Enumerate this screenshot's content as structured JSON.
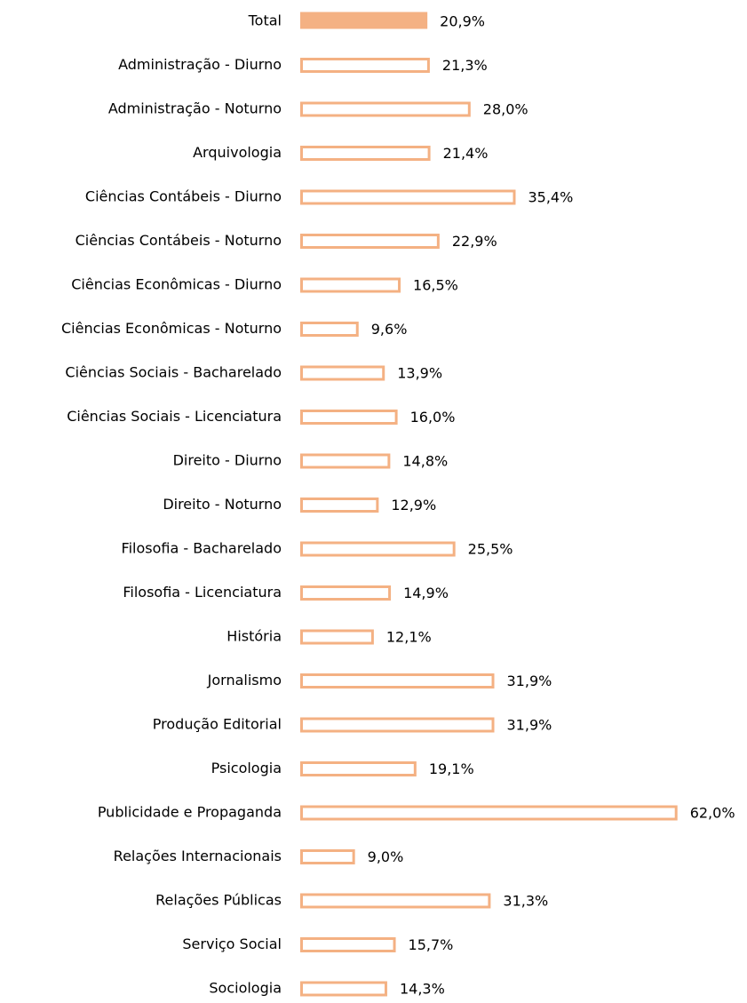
{
  "chart_data": {
    "type": "bar",
    "orientation": "horizontal",
    "color": "#f4b183",
    "categories": [
      "Total",
      "Administração - Diurno",
      "Administração - Noturno",
      "Arquivologia",
      "Ciências Contábeis - Diurno",
      "Ciências Contábeis - Noturno",
      "Ciências Econômicas - Diurno",
      "Ciências Econômicas - Noturno",
      "Ciências Sociais  - Bacharelado",
      "Ciências Sociais - Licenciatura",
      "Direito - Diurno",
      "Direito - Noturno",
      "Filosofia - Bacharelado",
      "Filosofia - Licenciatura",
      "História",
      "Jornalismo",
      "Produção Editorial",
      "Psicologia",
      "Publicidade e Propaganda",
      "Relações Internacionais",
      "Relações Públicas",
      "Serviço Social",
      "Sociologia"
    ],
    "values": [
      20.9,
      21.3,
      28.0,
      21.4,
      35.4,
      22.9,
      16.5,
      9.6,
      13.9,
      16.0,
      14.8,
      12.9,
      25.5,
      14.9,
      12.1,
      31.9,
      31.9,
      19.1,
      62.0,
      9.0,
      31.3,
      15.7,
      14.3
    ],
    "value_labels": [
      "20,9%",
      "21,3%",
      "28,0%",
      "21,4%",
      "35,4%",
      "22,9%",
      "16,5%",
      "9,6%",
      "13,9%",
      "16,0%",
      "14,8%",
      "12,9%",
      "25,5%",
      "14,9%",
      "12,1%",
      "31,9%",
      "31,9%",
      "19,1%",
      "62,0%",
      "9,0%",
      "31,3%",
      "15,7%",
      "14,3%"
    ],
    "bar_styles": [
      "filled",
      "outline",
      "outline",
      "outline",
      "outline",
      "outline",
      "outline",
      "outline",
      "outline",
      "outline",
      "outline",
      "outline",
      "outline",
      "outline",
      "outline",
      "outline",
      "outline",
      "outline",
      "outline",
      "outline",
      "outline",
      "outline",
      "outline"
    ]
  }
}
